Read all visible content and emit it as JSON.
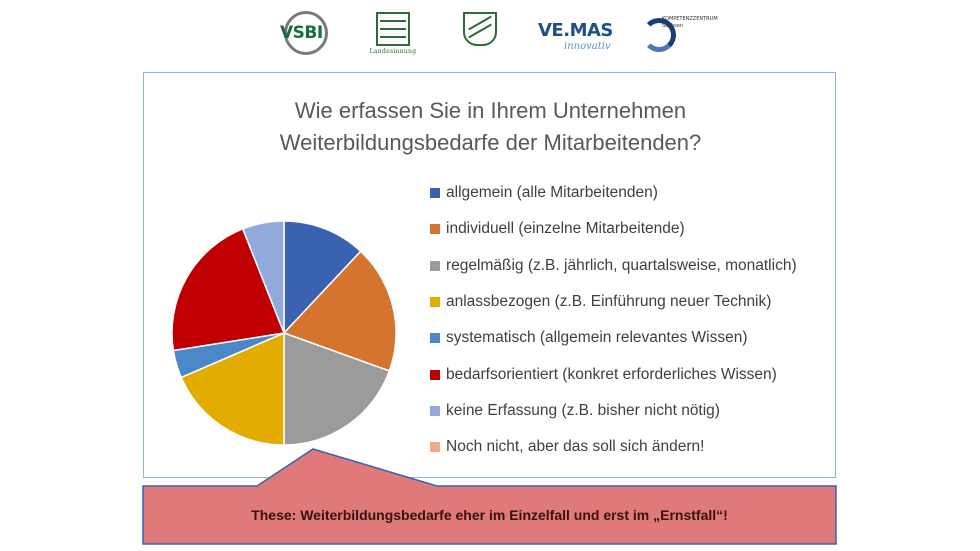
{
  "logos": [
    {
      "name": "vsbi-logo",
      "text": "VSBI"
    },
    {
      "name": "innung-logo",
      "text": "Landesinnung Sachsen"
    },
    {
      "name": "saxony-crest-logo",
      "text": ""
    },
    {
      "name": "vemas-logo",
      "text": "VE.MAS",
      "subtext": "innovativ"
    },
    {
      "name": "kompetenzzentrum-logo",
      "text": "KOMPETENZZENTRUM Sachsen"
    }
  ],
  "chart_data": {
    "type": "pie",
    "title_lines": [
      "Wie erfassen Sie in Ihrem Unternehmen",
      "Weiterbildungsbedarfe der Mitarbeitenden?"
    ],
    "legend_position": "right",
    "slices": [
      {
        "label": "allgemein (alle Mitarbeitenden)",
        "value": 12.0,
        "color": "#3a62b0"
      },
      {
        "label": "individuell (einzelne Mitarbeitende)",
        "value": 18.5,
        "color": "#d5742e"
      },
      {
        "label": "regelmäßig (z.B. jährlich, quartalsweise, monatlich)",
        "value": 19.5,
        "color": "#9b9b9b"
      },
      {
        "label": "anlassbezogen (z.B. Einführung neuer Technik)",
        "value": 18.5,
        "color": "#e3ac00"
      },
      {
        "label": "systematisch (allgemein relevantes Wissen)",
        "value": 4.0,
        "color": "#4b88c8"
      },
      {
        "label": "bedarfsorientiert (konkret erforderliches Wissen)",
        "value": 21.5,
        "color": "#c00000"
      },
      {
        "label": "keine Erfassung (z.B. bisher nicht nötig)",
        "value": 6.0,
        "color": "#92a9dc"
      },
      {
        "label": "Noch nicht, aber das soll sich ändern!",
        "value": 0,
        "color": "#f2a98a"
      }
    ]
  },
  "callout": {
    "text": "These: Weiterbildungsbedarfe eher im Einzelfall und erst im „Ernstfall“!",
    "fill": "#e07a7a",
    "stroke": "#3a62b0"
  }
}
